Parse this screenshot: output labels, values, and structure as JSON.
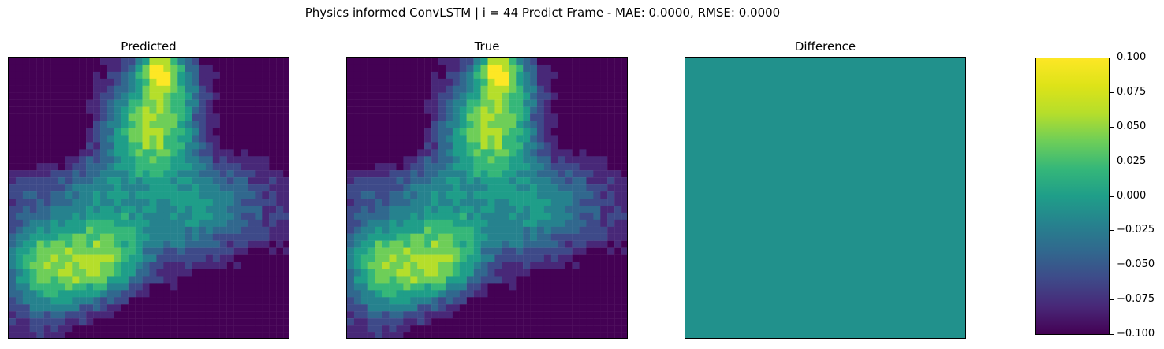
{
  "figure": {
    "suptitle": "Physics informed ConvLSTM | i = 44 Predict Frame - MAE: 0.0000, RMSE: 0.0000"
  },
  "chart_data": [
    {
      "type": "heatmap",
      "title": "Predicted",
      "grid_size": [
        40,
        40
      ],
      "colormap": "viridis",
      "description_values": "field of low values with brighter regions near top-center and lower-left"
    },
    {
      "type": "heatmap",
      "title": "True",
      "grid_size": [
        40,
        40
      ],
      "colormap": "viridis"
    },
    {
      "type": "heatmap",
      "title": "Difference",
      "grid_size": [
        40,
        40
      ],
      "colormap": "viridis",
      "uniform_value": 0.0,
      "vmin": -0.1,
      "vmax": 0.1
    }
  ],
  "colorbar": {
    "ticks": [
      "0.100",
      "0.075",
      "0.050",
      "0.025",
      "0.000",
      "−0.025",
      "−0.050",
      "−0.075",
      "−0.100"
    ],
    "range": [
      -0.1,
      0.1
    ],
    "colors": {
      "low": "#440154",
      "mid": "#21918c",
      "high": "#fde725"
    }
  }
}
